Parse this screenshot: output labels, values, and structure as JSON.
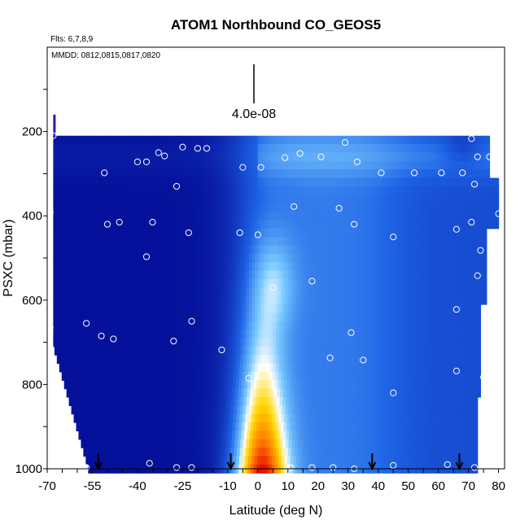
{
  "chart_data": {
    "type": "heatmap",
    "title": "ATOM1 Northbound CO_GEOS5",
    "subtitle_flights": "Flts: 6,7,8,9",
    "subtitle_dates": "MMDD: 0812,0815,0817,0820",
    "xlabel": "Latitude (deg N)",
    "ylabel": "PSXC (mbar)",
    "xlim": [
      -70,
      82
    ],
    "ylim": [
      1000,
      0
    ],
    "x_ticks": [
      -70,
      -55,
      -40,
      -25,
      -10,
      0,
      10,
      20,
      30,
      40,
      50,
      60,
      70,
      80
    ],
    "y_ticks": [
      200,
      400,
      600,
      800,
      1000
    ],
    "scale_bar_label": "4.0e-08",
    "colors": {
      "low": "#00008b",
      "mid_low": "#1e64e6",
      "mid": "#78c8ff",
      "light": "#ffffff",
      "yellow": "#ffd700",
      "orange": "#ff7a00",
      "high": "#e00000",
      "marker": "#ffffff",
      "arrow": "#000000"
    },
    "plume": {
      "center_lat": 1,
      "center_p": 810,
      "peak_value": 1.0
    },
    "data_extent": {
      "lat_min": -68,
      "lat_max": 80,
      "p_top": 210,
      "p_bottom": 1000
    },
    "flight_arrows_lat": [
      -53,
      -9,
      38,
      67
    ],
    "sample_points": [
      {
        "x": -68,
        "y": 210
      },
      {
        "x": -25,
        "y": 237
      },
      {
        "x": -20,
        "y": 240
      },
      {
        "x": -17,
        "y": 240
      },
      {
        "x": -33,
        "y": 250
      },
      {
        "x": -31,
        "y": 258
      },
      {
        "x": -40,
        "y": 272
      },
      {
        "x": -37,
        "y": 272
      },
      {
        "x": -51,
        "y": 298
      },
      {
        "x": -27,
        "y": 330
      },
      {
        "x": -5,
        "y": 285
      },
      {
        "x": 1,
        "y": 285
      },
      {
        "x": 9,
        "y": 262
      },
      {
        "x": 14,
        "y": 252
      },
      {
        "x": 21,
        "y": 260
      },
      {
        "x": 29,
        "y": 226
      },
      {
        "x": 33,
        "y": 272
      },
      {
        "x": 41,
        "y": 298
      },
      {
        "x": 52,
        "y": 298
      },
      {
        "x": 61,
        "y": 298
      },
      {
        "x": 68,
        "y": 298
      },
      {
        "x": 71,
        "y": 217
      },
      {
        "x": 73,
        "y": 260
      },
      {
        "x": 77,
        "y": 260
      },
      {
        "x": 72,
        "y": 325
      },
      {
        "x": -69,
        "y": 392
      },
      {
        "x": -50,
        "y": 420
      },
      {
        "x": -46,
        "y": 415
      },
      {
        "x": -35,
        "y": 415
      },
      {
        "x": -23,
        "y": 440
      },
      {
        "x": -6,
        "y": 440
      },
      {
        "x": 0,
        "y": 445
      },
      {
        "x": 12,
        "y": 378
      },
      {
        "x": 27,
        "y": 382
      },
      {
        "x": 32,
        "y": 420
      },
      {
        "x": 45,
        "y": 450
      },
      {
        "x": 66,
        "y": 432
      },
      {
        "x": 71,
        "y": 415
      },
      {
        "x": 80,
        "y": 395
      },
      {
        "x": -37,
        "y": 497
      },
      {
        "x": 74,
        "y": 482
      },
      {
        "x": 5,
        "y": 570
      },
      {
        "x": 18,
        "y": 555
      },
      {
        "x": 73,
        "y": 542
      },
      {
        "x": -69,
        "y": 665
      },
      {
        "x": -57,
        "y": 655
      },
      {
        "x": -52,
        "y": 685
      },
      {
        "x": -48,
        "y": 692
      },
      {
        "x": -28,
        "y": 697
      },
      {
        "x": -22,
        "y": 650
      },
      {
        "x": -12,
        "y": 718
      },
      {
        "x": 31,
        "y": 677
      },
      {
        "x": 24,
        "y": 737
      },
      {
        "x": 35,
        "y": 742
      },
      {
        "x": 66,
        "y": 622
      },
      {
        "x": 66,
        "y": 768
      },
      {
        "x": 75,
        "y": 783
      },
      {
        "x": -3,
        "y": 785
      },
      {
        "x": 45,
        "y": 820
      },
      {
        "x": -57,
        "y": 997
      },
      {
        "x": -36,
        "y": 987
      },
      {
        "x": -27,
        "y": 997
      },
      {
        "x": -22,
        "y": 997
      },
      {
        "x": 11,
        "y": 997
      },
      {
        "x": 18,
        "y": 997
      },
      {
        "x": 25,
        "y": 997
      },
      {
        "x": 32,
        "y": 1000
      },
      {
        "x": 45,
        "y": 992
      },
      {
        "x": 63,
        "y": 990
      },
      {
        "x": 72,
        "y": 997
      }
    ]
  }
}
